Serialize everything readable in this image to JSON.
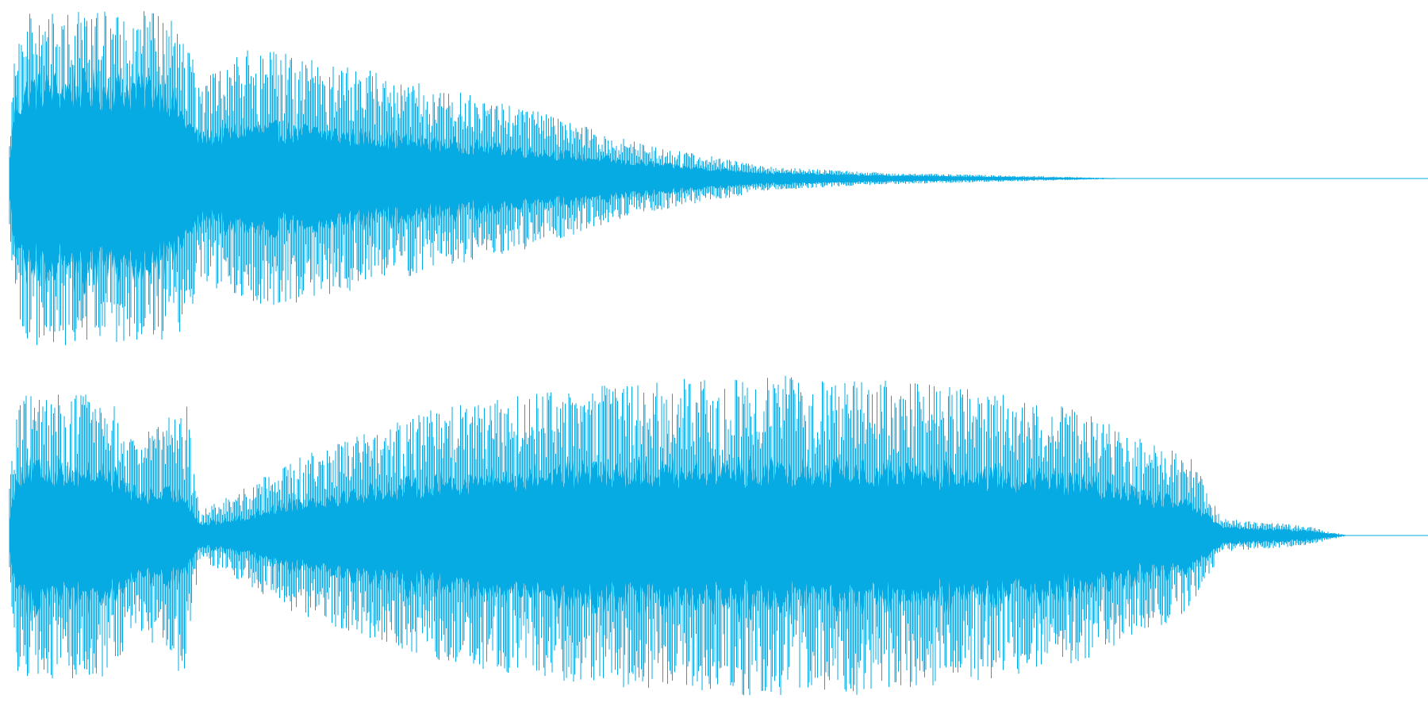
{
  "waveform": {
    "color": "#06abe3",
    "background": "#ffffff",
    "channels": [
      {
        "name": "",
        "envelope": [
          {
            "t": 0.0,
            "peak": 0.3,
            "body": 0.1
          },
          {
            "t": 0.004,
            "peak": 0.8,
            "body": 0.45
          },
          {
            "t": 0.015,
            "peak": 1.0,
            "body": 0.55
          },
          {
            "t": 0.06,
            "peak": 1.0,
            "body": 0.55
          },
          {
            "t": 0.11,
            "peak": 1.0,
            "body": 0.55
          },
          {
            "t": 0.125,
            "peak": 0.9,
            "body": 0.35
          },
          {
            "t": 0.135,
            "peak": 0.6,
            "body": 0.25
          },
          {
            "t": 0.17,
            "peak": 0.78,
            "body": 0.3
          },
          {
            "t": 0.22,
            "peak": 0.72,
            "body": 0.28
          },
          {
            "t": 0.3,
            "peak": 0.55,
            "body": 0.22
          },
          {
            "t": 0.37,
            "peak": 0.42,
            "body": 0.17
          },
          {
            "t": 0.43,
            "peak": 0.25,
            "body": 0.11
          },
          {
            "t": 0.48,
            "peak": 0.16,
            "body": 0.07
          },
          {
            "t": 0.54,
            "peak": 0.07,
            "body": 0.035
          },
          {
            "t": 0.62,
            "peak": 0.035,
            "body": 0.018
          },
          {
            "t": 0.7,
            "peak": 0.02,
            "body": 0.01
          },
          {
            "t": 0.76,
            "peak": 0.008,
            "body": 0.004
          },
          {
            "t": 0.8,
            "peak": 0.0,
            "body": 0.0
          },
          {
            "t": 1.0,
            "peak": 0.0,
            "body": 0.0
          }
        ]
      },
      {
        "name": "",
        "envelope": [
          {
            "t": 0.0,
            "peak": 0.3,
            "body": 0.1
          },
          {
            "t": 0.006,
            "peak": 0.85,
            "body": 0.4
          },
          {
            "t": 0.07,
            "peak": 0.85,
            "body": 0.38
          },
          {
            "t": 0.09,
            "peak": 0.55,
            "body": 0.25
          },
          {
            "t": 0.125,
            "peak": 0.85,
            "body": 0.25
          },
          {
            "t": 0.135,
            "peak": 0.15,
            "body": 0.07
          },
          {
            "t": 0.16,
            "peak": 0.25,
            "body": 0.1
          },
          {
            "t": 0.2,
            "peak": 0.45,
            "body": 0.2
          },
          {
            "t": 0.3,
            "peak": 0.75,
            "body": 0.32
          },
          {
            "t": 0.4,
            "peak": 0.88,
            "body": 0.38
          },
          {
            "t": 0.5,
            "peak": 0.95,
            "body": 0.4
          },
          {
            "t": 0.6,
            "peak": 0.95,
            "body": 0.4
          },
          {
            "t": 0.7,
            "peak": 0.85,
            "body": 0.36
          },
          {
            "t": 0.76,
            "peak": 0.75,
            "body": 0.32
          },
          {
            "t": 0.8,
            "peak": 0.6,
            "body": 0.25
          },
          {
            "t": 0.84,
            "peak": 0.45,
            "body": 0.18
          },
          {
            "t": 0.86,
            "peak": 0.1,
            "body": 0.05
          },
          {
            "t": 0.92,
            "peak": 0.06,
            "body": 0.03
          },
          {
            "t": 0.95,
            "peak": 0.0,
            "body": 0.0
          },
          {
            "t": 1.0,
            "peak": 0.0,
            "body": 0.0
          }
        ]
      }
    ]
  }
}
